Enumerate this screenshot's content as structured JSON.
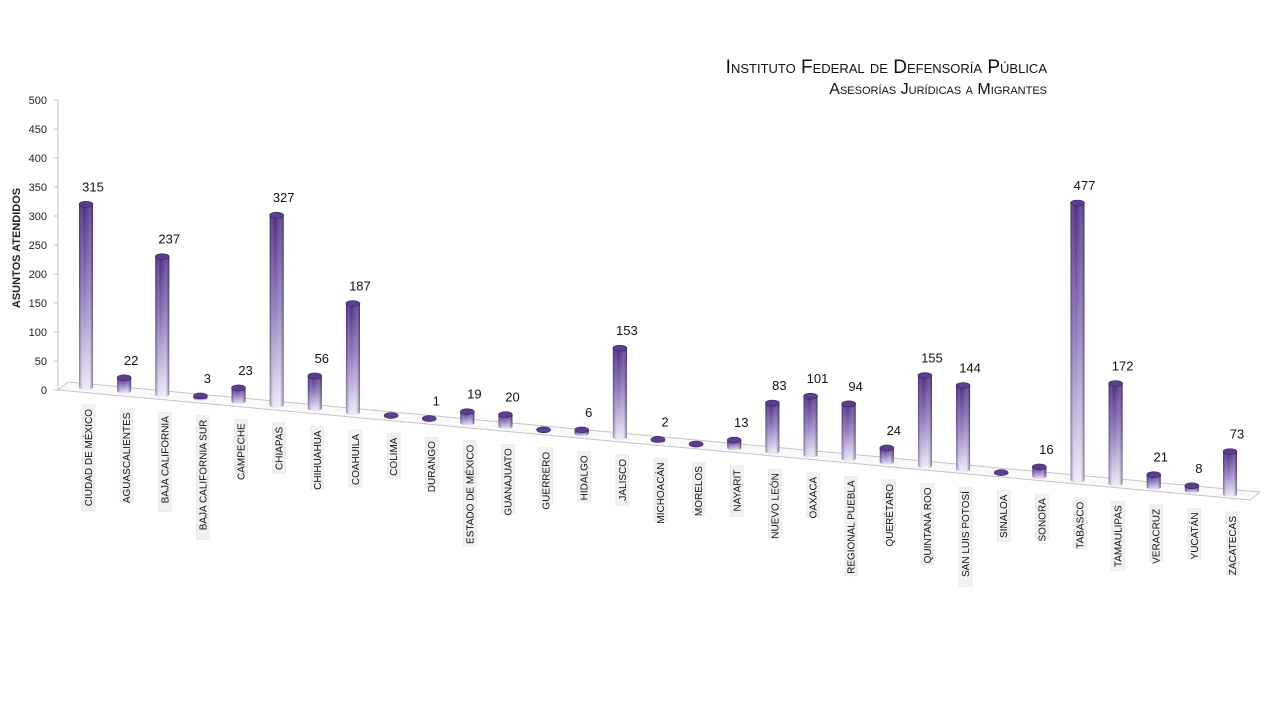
{
  "chart_data": {
    "type": "bar",
    "title": "Instituto Federal de Defensoría Pública",
    "subtitle": "Asesorías Jurídicas a Migrantes",
    "ylabel": "ASUNTOS ATENDIDOS",
    "xlabel": "",
    "ylim": [
      0,
      500
    ],
    "yticks": [
      0,
      50,
      100,
      150,
      200,
      250,
      300,
      350,
      400,
      450,
      500
    ],
    "categories": [
      "CIUDAD DE MÉXICO",
      "AGUASCALIENTES",
      "BAJA CALIFORNIA",
      "BAJA CALIFORNIA SUR",
      "CAMPECHE",
      "CHIAPAS",
      "CHIHUAHUA",
      "COAHUILA",
      "COLIMA",
      "DURANGO",
      "ESTADO DE MÉXICO",
      "GUANAJUATO",
      "GUERRERO",
      "HIDALGO",
      "JALISCO",
      "MICHOACÁN",
      "MORELOS",
      "NAYARIT",
      "NUEVO LEÓN",
      "OAXACA",
      "REGIONAL PUEBLA",
      "QUERÉTARO",
      "QUINTANA ROO",
      "SAN LUIS POTOSÍ",
      "SINALOA",
      "SONORA",
      "TABASCO",
      "TAMAULIPAS",
      "VERACRUZ",
      "YUCATÁN",
      "ZACATECAS"
    ],
    "values": [
      315,
      22,
      237,
      3,
      23,
      327,
      56,
      187,
      null,
      1,
      19,
      20,
      null,
      6,
      153,
      2,
      null,
      13,
      83,
      101,
      94,
      24,
      155,
      144,
      null,
      16,
      477,
      172,
      21,
      8,
      73
    ],
    "data_labels": [
      "315",
      "22",
      "237",
      "3",
      "23",
      "327",
      "56",
      "187",
      "",
      "1",
      "19",
      "20",
      "",
      "6",
      "153",
      "2",
      "",
      "13",
      "83",
      "101",
      "94",
      "24",
      "155",
      "144",
      "",
      "16",
      "477",
      "172",
      "21",
      "8",
      "73"
    ],
    "bar_color": "#5b3f8c",
    "highlight_color": "#f2eefa",
    "grid": false,
    "legend": "none"
  }
}
